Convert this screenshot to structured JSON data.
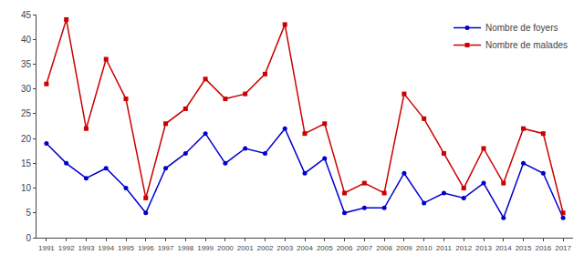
{
  "chart_data": {
    "type": "line",
    "x": [
      1991,
      1992,
      1993,
      1994,
      1995,
      1996,
      1997,
      1998,
      1999,
      2000,
      2001,
      2002,
      2003,
      2004,
      2005,
      2006,
      2007,
      2008,
      2009,
      2010,
      2011,
      2012,
      2013,
      2014,
      2015,
      2016,
      2017
    ],
    "series": [
      {
        "name": "Nombre de foyers",
        "color": "#0000cc",
        "marker": "circle",
        "values": [
          19,
          15,
          12,
          14,
          10,
          5,
          14,
          17,
          21,
          15,
          18,
          17,
          22,
          13,
          16,
          5,
          6,
          6,
          13,
          7,
          9,
          8,
          11,
          4,
          15,
          13,
          4
        ]
      },
      {
        "name": "Nombre de malades",
        "color": "#cc0000",
        "marker": "square",
        "values": [
          31,
          44,
          22,
          36,
          28,
          8,
          23,
          26,
          32,
          28,
          29,
          33,
          43,
          21,
          23,
          9,
          11,
          9,
          29,
          24,
          17,
          10,
          18,
          11,
          22,
          21,
          5
        ]
      }
    ],
    "xlim": [
      1990.5,
      2017.5
    ],
    "xticks": [
      1991,
      1992,
      1993,
      1994,
      1995,
      1996,
      1997,
      1998,
      1999,
      2000,
      2001,
      2002,
      2003,
      2004,
      2005,
      2006,
      2007,
      2008,
      2009,
      2010,
      2011,
      2012,
      2013,
      2014,
      2015,
      2016,
      2017
    ],
    "ylim": [
      0,
      45
    ],
    "yticks": [
      0,
      5,
      10,
      15,
      20,
      25,
      30,
      35,
      40,
      45
    ],
    "grid": false,
    "legend": "upper right"
  }
}
